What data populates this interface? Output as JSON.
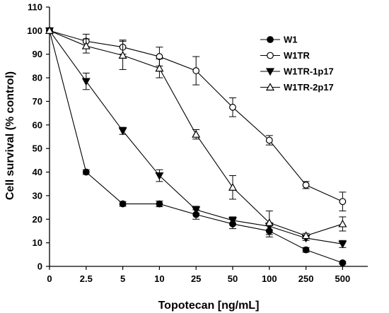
{
  "chart_data": {
    "type": "line",
    "title": "",
    "xlabel": "Topotecan [ng/mL]",
    "ylabel": "Cell survival (% control)",
    "ylim": [
      0,
      110
    ],
    "yticks": [
      0,
      10,
      20,
      30,
      40,
      50,
      60,
      70,
      80,
      90,
      100,
      110
    ],
    "categories": [
      "0",
      "2.5",
      "5",
      "10",
      "25",
      "50",
      "100",
      "250",
      "500"
    ],
    "x_scale": "categorical",
    "grid": false,
    "legend_position": "top-right",
    "series": [
      {
        "name": "W1",
        "marker": "filled-circle",
        "values": [
          100,
          40,
          26.5,
          26.5,
          22,
          18,
          15,
          7,
          1.5
        ],
        "errors": [
          0,
          1,
          1,
          1.2,
          2,
          2,
          2.5,
          1,
          0.5
        ]
      },
      {
        "name": "W1TR",
        "marker": "open-circle",
        "values": [
          100,
          95.5,
          93,
          89,
          83,
          67.5,
          53.5,
          34.5,
          27.5
        ],
        "errors": [
          0,
          3,
          3,
          4,
          6,
          4,
          2,
          1.5,
          4
        ]
      },
      {
        "name": "W1TR-1p17",
        "marker": "filled-triangle-down",
        "values": [
          100,
          78.5,
          57.5,
          38.5,
          24,
          19.5,
          17,
          12,
          9.5
        ],
        "errors": [
          0,
          3.5,
          1.5,
          2.5,
          1.5,
          1.5,
          1.5,
          1,
          1.5
        ]
      },
      {
        "name": "W1TR-2p17",
        "marker": "open-triangle-up",
        "values": [
          100,
          93.5,
          89.5,
          84,
          56,
          33.5,
          18.5,
          13,
          18
        ],
        "errors": [
          0,
          3,
          6,
          4,
          2,
          5,
          5,
          1,
          3
        ]
      }
    ]
  }
}
